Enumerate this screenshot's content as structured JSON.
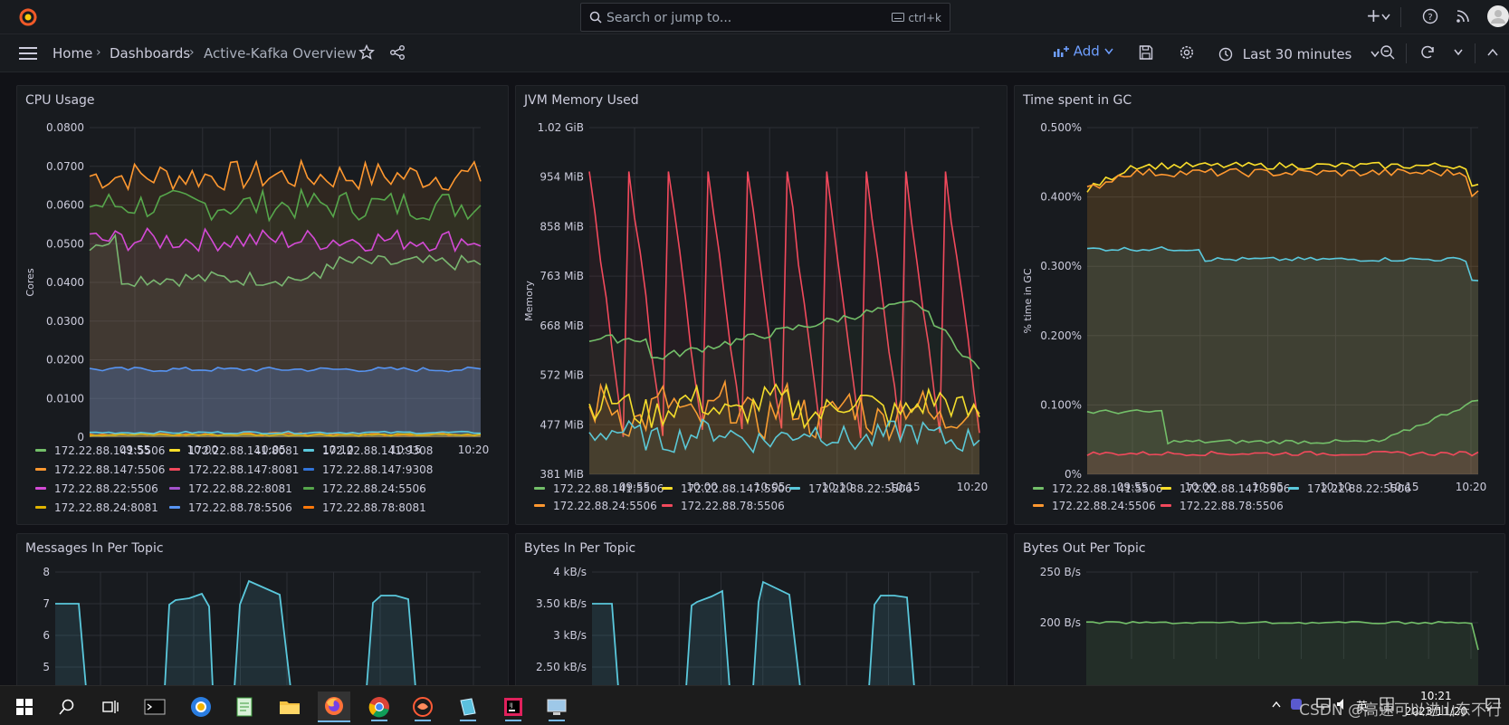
{
  "topbar": {
    "search_placeholder": "Search or jump to...",
    "search_shortcut": "ctrl+k",
    "new_label": "+"
  },
  "nav": {
    "breadcrumb": [
      "Home",
      "Dashboards",
      "Active-Kafka Overview"
    ],
    "add_label": "Add",
    "time_range": "Last 30 minutes"
  },
  "colors": {
    "green": "#73bf69",
    "yellow": "#fade2a",
    "cyan": "#5ac8dc",
    "orange": "#ff9830",
    "red": "#f2495c",
    "blue": "#3274d9",
    "magenta": "#d44ad6",
    "purple": "#a352cc",
    "darkgreen": "#56a64b",
    "gold": "#e0b400",
    "steel": "#5794f2",
    "darkorange": "#ff780a"
  },
  "panels": {
    "cpu": {
      "title": "CPU Usage",
      "y_label": "Cores",
      "y_ticks": [
        "0.0800",
        "0.0700",
        "0.0600",
        "0.0500",
        "0.0400",
        "0.0300",
        "0.0200",
        "0.0100",
        "0"
      ],
      "x_ticks": [
        "09:55",
        "10:00",
        "10:05",
        "10:10",
        "10:15",
        "10:20"
      ],
      "legend": [
        {
          "label": "172.22.88.141:5506",
          "color": "green"
        },
        {
          "label": "172.22.88.141:8081",
          "color": "yellow"
        },
        {
          "label": "172.22.88.141:9308",
          "color": "cyan"
        },
        {
          "label": "172.22.88.147:5506",
          "color": "orange"
        },
        {
          "label": "172.22.88.147:8081",
          "color": "red"
        },
        {
          "label": "172.22.88.147:9308",
          "color": "blue"
        },
        {
          "label": "172.22.88.22:5506",
          "color": "magenta"
        },
        {
          "label": "172.22.88.22:8081",
          "color": "purple"
        },
        {
          "label": "172.22.88.24:5506",
          "color": "darkgreen"
        },
        {
          "label": "172.22.88.24:8081",
          "color": "gold"
        },
        {
          "label": "172.22.88.78:5506",
          "color": "steel"
        },
        {
          "label": "172.22.88.78:8081",
          "color": "darkorange"
        }
      ]
    },
    "jvm": {
      "title": "JVM Memory Used",
      "y_label": "Memory",
      "y_ticks": [
        "1.02 GiB",
        "954 MiB",
        "858 MiB",
        "763 MiB",
        "668 MiB",
        "572 MiB",
        "477 MiB",
        "381 MiB"
      ],
      "x_ticks": [
        "09:55",
        "10:00",
        "10:05",
        "10:10",
        "10:15",
        "10:20"
      ],
      "legend": [
        {
          "label": "172.22.88.141:5506",
          "color": "green"
        },
        {
          "label": "172.22.88.147:5506",
          "color": "yellow"
        },
        {
          "label": "172.22.88.22:5506",
          "color": "cyan"
        },
        {
          "label": "172.22.88.24:5506",
          "color": "orange"
        },
        {
          "label": "172.22.88.78:5506",
          "color": "red"
        }
      ]
    },
    "gc": {
      "title": "Time spent in GC",
      "y_label": "% time in GC",
      "y_ticks": [
        "0.500%",
        "0.400%",
        "0.300%",
        "0.200%",
        "0.100%",
        "0%"
      ],
      "x_ticks": [
        "09:55",
        "10:00",
        "10:05",
        "10:10",
        "10:15",
        "10:20"
      ],
      "legend": [
        {
          "label": "172.22.88.141:5506",
          "color": "green"
        },
        {
          "label": "172.22.88.147:5506",
          "color": "yellow"
        },
        {
          "label": "172.22.88.22:5506",
          "color": "cyan"
        },
        {
          "label": "172.22.88.24:5506",
          "color": "orange"
        },
        {
          "label": "172.22.88.78:5506",
          "color": "red"
        }
      ]
    },
    "msgs": {
      "title": "Messages In Per Topic",
      "y_ticks": [
        "8",
        "7",
        "6",
        "5"
      ]
    },
    "bytes_in": {
      "title": "Bytes In Per Topic",
      "y_ticks": [
        "4 kB/s",
        "3.50 kB/s",
        "3 kB/s",
        "2.50 kB/s"
      ]
    },
    "bytes_out": {
      "title": "Bytes Out Per Topic",
      "y_ticks": [
        "250 B/s",
        "200 B/s"
      ]
    }
  },
  "taskbar": {
    "ime_label": "英",
    "clock_time": "10:21",
    "clock_date": "2023/11/20",
    "watermark": "CSDN @高速可以进山东不行"
  }
}
